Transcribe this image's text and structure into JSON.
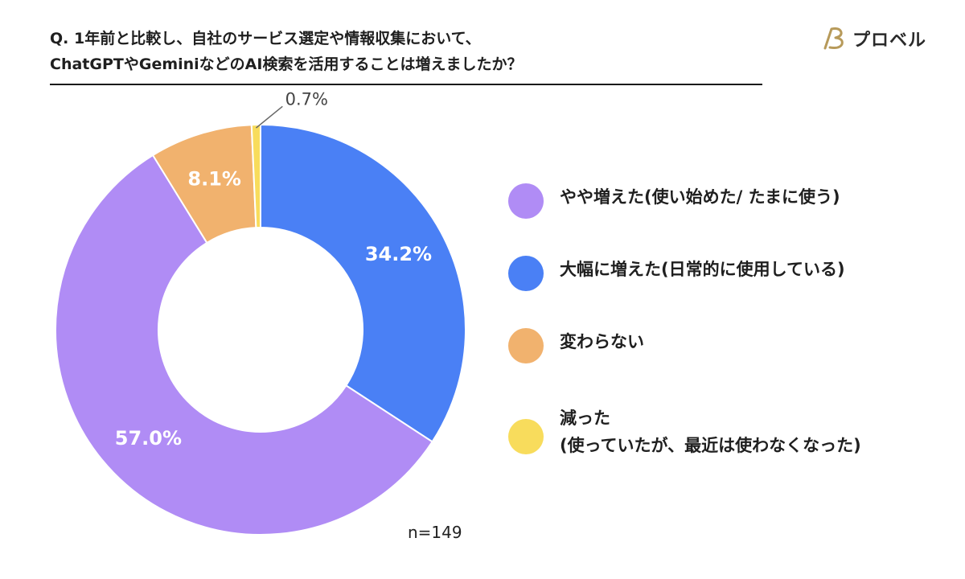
{
  "header": {
    "title": "Q. 1年前と比較し、自社のサービス選定や情報収集において、\nChatGPTやGeminiなどのAI検索を活用することは増えましたか？",
    "logo_text": "プロベル"
  },
  "chart_data": {
    "type": "pie",
    "donut": true,
    "slices": [
      {
        "label": "大幅に増えた(日常的に使用している)",
        "value": 34.2,
        "display": "34.2%",
        "color": "#4a80f5"
      },
      {
        "label": "やや増えた(使い始めた/ たまに使う)",
        "value": 57.0,
        "display": "57.0%",
        "color": "#b08cf5"
      },
      {
        "label": "変わらない",
        "value": 8.1,
        "display": "8.1%",
        "color": "#f1b26e"
      },
      {
        "label": "減った\n(使っていたが、最近は使わなくなった)",
        "value": 0.7,
        "display": "0.7%",
        "color": "#f8dc5c"
      }
    ],
    "legend_order": [
      1,
      0,
      2,
      3
    ],
    "legend_position": "right",
    "note": "n=149"
  },
  "colors": {
    "label_white": "#ffffff",
    "outside_label": "#444444"
  }
}
